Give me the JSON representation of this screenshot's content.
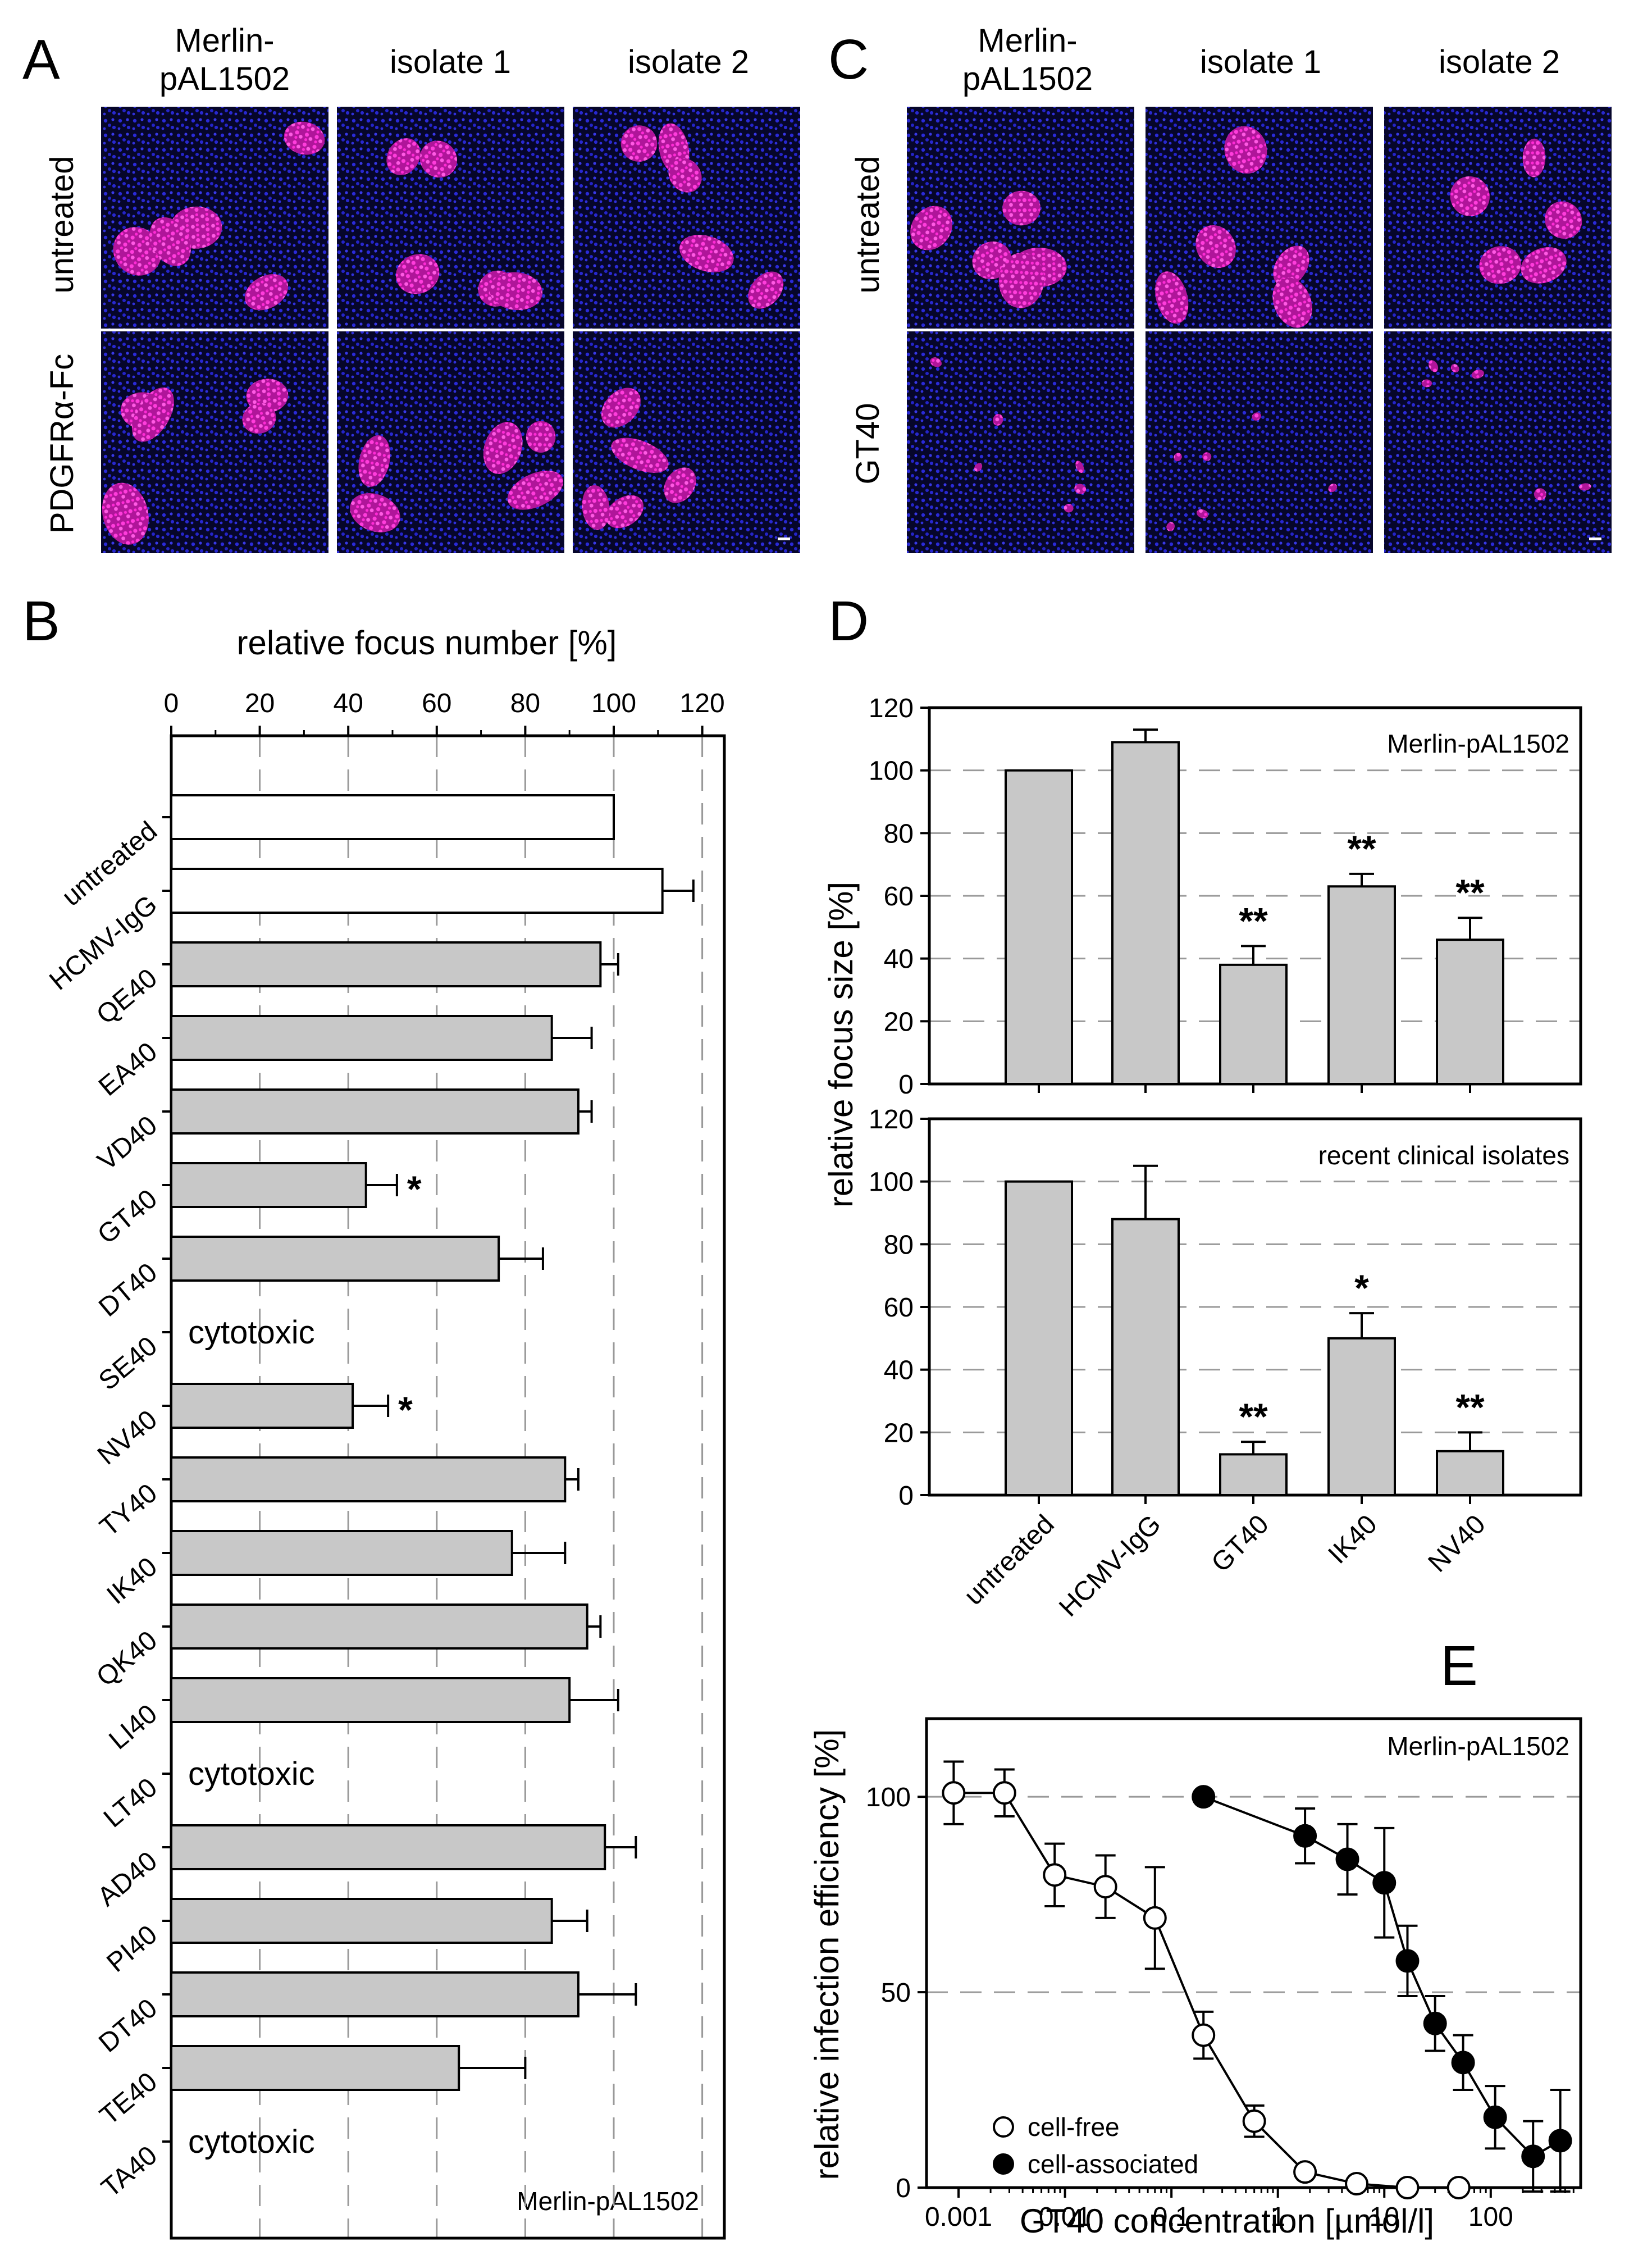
{
  "panels": {
    "A": {
      "letter": "A",
      "columns": [
        "Merlin-\npAL1502",
        "isolate 1",
        "isolate 2"
      ],
      "rows": [
        "untreated",
        "PDGFRα-Fc"
      ]
    },
    "C": {
      "letter": "C",
      "columns": [
        "Merlin-\npAL1502",
        "isolate 1",
        "isolate 2"
      ],
      "rows": [
        "untreated",
        "GT40"
      ]
    }
  },
  "colors": {
    "nuclei": "#2a2ad8",
    "foci": "#ff2bd6",
    "bar_gray": "#c8c8c8",
    "bar_white": "#ffffff",
    "grid": "#999999"
  },
  "chart_data": [
    {
      "id": "B",
      "letter": "B",
      "type": "bar",
      "orientation": "horizontal",
      "xlabel": "relative focus number [%]",
      "xlim": [
        0,
        125
      ],
      "xticks": [
        0,
        20,
        40,
        60,
        80,
        100,
        120
      ],
      "inset_label": "Merlin-pAL1502",
      "grid": "vertical dashed",
      "categories": [
        "untreated",
        "HCMV-IgG",
        "QE40",
        "EA40",
        "VD40",
        "GT40",
        "DT40",
        "SE40",
        "NV40",
        "TY40",
        "IK40",
        "QK40",
        "LI40",
        "LT40",
        "AD40",
        "PI40",
        "DT40",
        "TE40",
        "TA40"
      ],
      "values": [
        100,
        111,
        97,
        86,
        92,
        44,
        74,
        null,
        41,
        89,
        77,
        94,
        90,
        null,
        98,
        86,
        92,
        65,
        null
      ],
      "errors": [
        0,
        7,
        4,
        9,
        3,
        7,
        10,
        null,
        8,
        3,
        12,
        3,
        11,
        null,
        7,
        8,
        13,
        15,
        null
      ],
      "fill": [
        "white",
        "white",
        "gray",
        "gray",
        "gray",
        "gray",
        "gray",
        "none",
        "gray",
        "gray",
        "gray",
        "gray",
        "gray",
        "none",
        "gray",
        "gray",
        "gray",
        "gray",
        "none"
      ],
      "significance": [
        "",
        "",
        "",
        "",
        "",
        "*",
        "",
        "",
        "*",
        "",
        "",
        "",
        "",
        "",
        "",
        "",
        "",
        "",
        ""
      ],
      "bar_text": [
        "",
        "",
        "",
        "",
        "",
        "",
        "",
        "cytotoxic",
        "",
        "",
        "",
        "",
        "",
        "cytotoxic",
        "",
        "",
        "",
        "",
        "cytotoxic"
      ]
    },
    {
      "id": "D1",
      "letter": "D",
      "type": "bar",
      "ylabel": "relative focus size [%]",
      "ylim": [
        0,
        120
      ],
      "yticks": [
        0,
        20,
        40,
        60,
        80,
        100,
        120
      ],
      "inset_label": "Merlin-pAL1502",
      "grid": "horizontal dashed",
      "categories": [
        "untreated",
        "HCMV-IgG",
        "GT40",
        "IK40",
        "NV40"
      ],
      "values": [
        100,
        109,
        38,
        63,
        46
      ],
      "errors": [
        0,
        4,
        6,
        4,
        7
      ],
      "significance": [
        "",
        "",
        "**",
        "**",
        "**"
      ]
    },
    {
      "id": "D2",
      "type": "bar",
      "ylim": [
        0,
        120
      ],
      "yticks": [
        0,
        20,
        40,
        60,
        80,
        100,
        120
      ],
      "inset_label": "recent clinical isolates",
      "grid": "horizontal dashed",
      "categories": [
        "untreated",
        "HCMV-IgG",
        "GT40",
        "IK40",
        "NV40"
      ],
      "values": [
        100,
        88,
        13,
        50,
        14
      ],
      "errors": [
        0,
        17,
        4,
        8,
        6
      ],
      "significance": [
        "",
        "",
        "**",
        "*",
        "**"
      ]
    },
    {
      "id": "E",
      "letter": "E",
      "type": "scatter",
      "xlabel": "GT40 concentration [µmol/l]",
      "ylabel": "relative infection efficiency [%]",
      "xscale": "log",
      "xlim": [
        0.0005,
        700
      ],
      "ylim": [
        0,
        120
      ],
      "xtick_values": [
        0.001,
        0.01,
        0.1,
        1,
        10,
        100
      ],
      "xtick_labels": [
        "0.001",
        "0.01",
        "0.1",
        "1",
        "10",
        "100"
      ],
      "yticks": [
        0,
        50,
        100
      ],
      "inset_label": "Merlin-pAL1502",
      "grid": "horizontal dashed",
      "legend_position": "bottom-left",
      "series": [
        {
          "name": "cell-free",
          "marker": "open-circle",
          "x": [
            0.0009,
            0.0027,
            0.008,
            0.024,
            0.07,
            0.2,
            0.6,
            1.8,
            5.5,
            16.5,
            50
          ],
          "y": [
            101,
            101,
            80,
            77,
            69,
            39,
            17,
            4,
            1,
            0,
            0
          ],
          "errors": [
            8,
            6,
            8,
            8,
            13,
            6,
            4,
            0,
            0,
            0,
            0
          ]
        },
        {
          "name": "cell-associated",
          "marker": "filled-circle",
          "x": [
            0.2,
            1.8,
            4.5,
            10,
            16.5,
            30,
            55,
            110,
            250,
            450
          ],
          "y": [
            100,
            90,
            84,
            78,
            58,
            42,
            32,
            18,
            8,
            12
          ],
          "errors": [
            0,
            7,
            9,
            14,
            9,
            7,
            7,
            8,
            9,
            13
          ]
        }
      ]
    }
  ]
}
